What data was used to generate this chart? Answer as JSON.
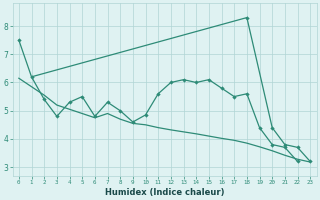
{
  "xlabel": "Humidex (Indice chaleur)",
  "color": "#2e8b77",
  "bg_color": "#dff2f2",
  "grid_color": "#b0d5d5",
  "ylim": [
    2.7,
    8.8
  ],
  "xlim": [
    -0.5,
    23.5
  ],
  "yticks": [
    3,
    4,
    5,
    6,
    7,
    8
  ],
  "line1_x": [
    0,
    1,
    2,
    3,
    4,
    5,
    6,
    7,
    8,
    9,
    10,
    11,
    12,
    13,
    14,
    15,
    16,
    17,
    18,
    19,
    20,
    21,
    22
  ],
  "line1_y": [
    7.5,
    6.2,
    5.4,
    4.8,
    5.3,
    5.5,
    4.8,
    5.3,
    5.0,
    4.6,
    4.85,
    5.6,
    6.0,
    6.1,
    6.0,
    6.1,
    5.8,
    5.5,
    5.6,
    4.4,
    3.8,
    3.7,
    3.2
  ],
  "line2_x": [
    1,
    18
  ],
  "line2_y": [
    6.2,
    8.3
  ],
  "line3_x": [
    0,
    1,
    2,
    3,
    4,
    5,
    6,
    7,
    8,
    9,
    10,
    11,
    12,
    13,
    14,
    15,
    16,
    17,
    18,
    19,
    20,
    21,
    22,
    23
  ],
  "line3_y": [
    6.15,
    5.85,
    5.55,
    5.2,
    5.05,
    4.9,
    4.75,
    4.9,
    4.7,
    4.55,
    4.5,
    4.4,
    4.32,
    4.25,
    4.18,
    4.1,
    4.02,
    3.95,
    3.85,
    3.72,
    3.58,
    3.42,
    3.28,
    3.18
  ],
  "line4_x": [
    18,
    20,
    21,
    22,
    23
  ],
  "line4_y": [
    8.3,
    4.4,
    3.8,
    3.7,
    3.2
  ]
}
